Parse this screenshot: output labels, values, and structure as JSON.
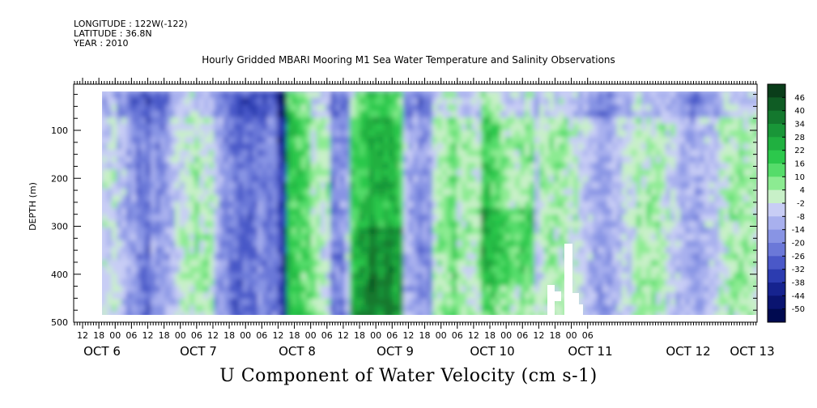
{
  "header": {
    "longitude": "LONGITUDE : 122W(-122)",
    "latitude": "LATITUDE : 36.8N",
    "year": "YEAR : 2010"
  },
  "chart_data": {
    "type": "heatmap",
    "title": "Hourly Gridded MBARI Mooring M1 Sea Water Temperature and Salinity Observations",
    "xlabel": "U Component of Water Velocity (cm s-1)",
    "ylabel": "DEPTH (m)",
    "ylim": [
      500,
      0
    ],
    "y_ticks": [
      100,
      200,
      300,
      400,
      500
    ],
    "x_hour_ticks": [
      "12",
      "18",
      "00",
      "06",
      "12",
      "18",
      "00",
      "06",
      "12",
      "18",
      "00",
      "06",
      "12",
      "18",
      "00",
      "06",
      "12",
      "18",
      "00",
      "06",
      "12",
      "18",
      "00",
      "06",
      "12",
      "18",
      "00",
      "06",
      "12",
      "18",
      "00",
      "06"
    ],
    "x_day_labels": [
      "OCT 6",
      "OCT 7",
      "OCT 8",
      "OCT 9",
      "OCT 10",
      "OCT 11",
      "OCT 12",
      "OCT 13"
    ],
    "colorbar": {
      "levels": [
        46,
        40,
        34,
        28,
        22,
        16,
        10,
        4,
        -2,
        -8,
        -14,
        -20,
        -26,
        -32,
        -38,
        -44,
        -50
      ],
      "colors": [
        "#0a3d1a",
        "#0f5c24",
        "#14782e",
        "#199638",
        "#20b040",
        "#2cc84c",
        "#55dc6a",
        "#8ceb92",
        "#c8f0c8",
        "#c8cdf5",
        "#a8b0ee",
        "#8894e4",
        "#6b78d8",
        "#4a58c8",
        "#2c3cb0",
        "#16238f",
        "#0a1470",
        "#000a50"
      ]
    },
    "depth_profile_bands": [
      {
        "period": "OCT 6 12 - OCT 7 18",
        "tendency": "mostly negative (blue) with green patches 150-300 m"
      },
      {
        "period": "OCT 8 00 - OCT 9 06",
        "tendency": "mostly negative (blue), strong minimum near OCT 9 03"
      },
      {
        "period": "OCT 9 06 - OCT 10 00",
        "tendency": "positive (green) through most depths"
      },
      {
        "period": "OCT 10 00 - OCT 11 00",
        "tendency": "strongly positive (dark green) 300-450 m"
      },
      {
        "period": "OCT 11 00 - OCT 12 00",
        "tendency": "mixed positive/negative, data gap near surface 350-480 m"
      },
      {
        "period": "OCT 12 00 - OCT 13 12",
        "tendency": "positive (green) with blue near surface"
      }
    ]
  }
}
